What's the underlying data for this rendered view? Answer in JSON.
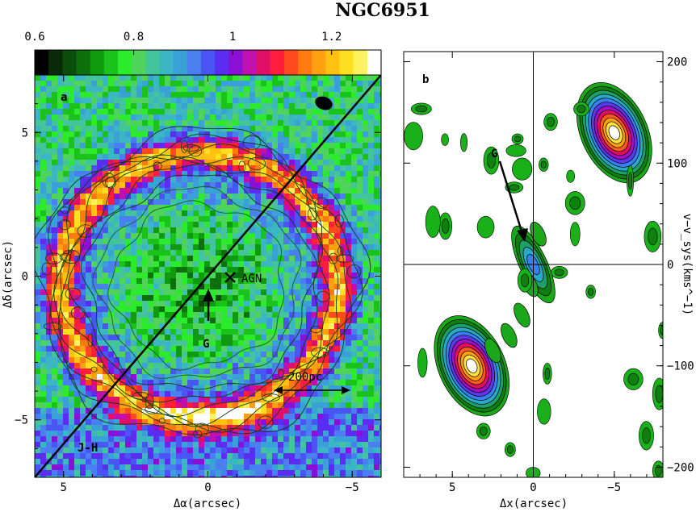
{
  "title": "NGC6951",
  "colorbar": {
    "tick_labels": [
      "0.6",
      "0.8",
      "1",
      "1.2"
    ],
    "tick_values": [
      0.6,
      0.8,
      1.0,
      1.2
    ],
    "range": [
      0.6,
      1.3
    ],
    "colors": [
      "#000000",
      "#0a2a0a",
      "#0b4d0b",
      "#0d700d",
      "#109a10",
      "#19c319",
      "#2cea2c",
      "#4fd35a",
      "#44c49a",
      "#3ab7c2",
      "#3aa0d8",
      "#4a7ff0",
      "#4a56f4",
      "#5a2df0",
      "#8a10d8",
      "#c010b0",
      "#e0106a",
      "#ff1e3c",
      "#ff4a1e",
      "#ff7a10",
      "#ffa010",
      "#ffc210",
      "#ffe020",
      "#fff060",
      "#ffffff"
    ]
  },
  "panel_a": {
    "label": "a",
    "annotations": {
      "agn": "AGN",
      "g": "G",
      "jh": "J-H",
      "scale_bar": "200pc"
    },
    "xlabel": "Δα(arcsec)",
    "ylabel": "Δδ(arcsec)"
  },
  "panel_b": {
    "label": "b",
    "annotations": {
      "g": "G"
    },
    "xlabel": "Δx(arcsec)",
    "ylabel": "v−v_sys(kms^−1)"
  },
  "chart_data": [
    {
      "type": "heatmap",
      "panel": "a",
      "description_of_values": "J-H colour map with CO contours",
      "xlim": [
        6,
        -6
      ],
      "ylim": [
        -7,
        7
      ],
      "x_ticks": [
        5,
        0,
        -5
      ],
      "x_tick_labels": [
        "5",
        "0",
        "−5"
      ],
      "y_ticks": [
        5,
        0,
        -5
      ],
      "y_tick_labels": [
        "5",
        "0",
        "−5"
      ],
      "color_range": [
        0.6,
        1.3
      ],
      "ring_center": [
        0.3,
        -0.3
      ],
      "ring_radius_arcsec": 4.8,
      "major_axis_line": [
        [
          6,
          -7
        ],
        [
          -6,
          7
        ]
      ],
      "agn_position": [
        0,
        0
      ],
      "scale_bar_arcsec": [
        -2.2,
        -4.4
      ]
    },
    {
      "type": "heatmap",
      "panel": "b",
      "description_of_values": "position-velocity diagram",
      "xlim": [
        8,
        -8
      ],
      "ylim": [
        -210,
        210
      ],
      "x_ticks": [
        5,
        0,
        -5
      ],
      "x_tick_labels": [
        "5",
        "0",
        "−5"
      ],
      "y_ticks": [
        200,
        100,
        0,
        -100,
        -200
      ],
      "y_tick_labels": [
        "200",
        "100",
        "0",
        "−100",
        "−200"
      ],
      "peaks": [
        {
          "x": -5.0,
          "v": 130,
          "strength": 1.0
        },
        {
          "x": 3.8,
          "v": -100,
          "strength": 1.0
        },
        {
          "x": 0.0,
          "v": 0,
          "strength": 0.45
        }
      ]
    }
  ]
}
